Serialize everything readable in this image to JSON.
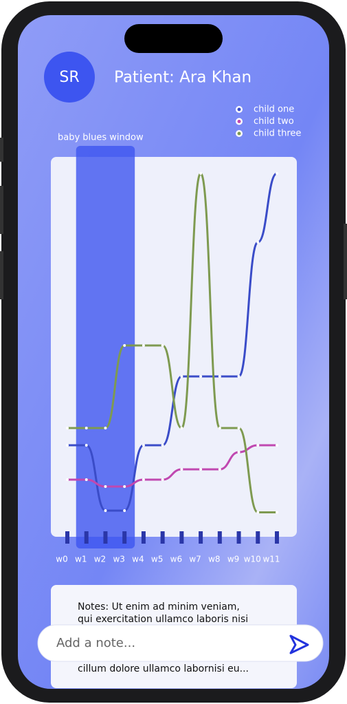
{
  "header": {
    "avatar": "SR",
    "patient": "Patient: Ara Khan"
  },
  "chart_data": {
    "type": "line",
    "annotation": "baby blues window",
    "categories": [
      "w0",
      "w1",
      "w2",
      "w3",
      "w4",
      "w5",
      "w6",
      "w7",
      "w8",
      "w9",
      "w10",
      "w11"
    ],
    "ylim": [
      0,
      10
    ],
    "series": [
      {
        "name": "child one",
        "color": "#3a4cc8",
        "values": [
          2.1,
          2.1,
          0.2,
          0.2,
          2.1,
          2.1,
          4.1,
          4.1,
          4.1,
          4.1,
          8,
          10
        ]
      },
      {
        "name": "child two",
        "color": "#c048b0",
        "values": [
          1.1,
          1.1,
          0.9,
          0.9,
          1.1,
          1.1,
          1.4,
          1.4,
          1.4,
          1.9,
          2.1,
          2.1
        ]
      },
      {
        "name": "child three",
        "color": "#7e9a50",
        "values": [
          2.6,
          2.6,
          2.6,
          5,
          5,
          5,
          2.6,
          10,
          2.6,
          2.6,
          0.15,
          0.15
        ]
      }
    ]
  },
  "notes": {
    "lines": [
      "Notes: Ut enim ad minim veniam,",
      "qui exercitation ullamco laboris nisi",
      "cillum dolore ullamco labornisi eu..."
    ]
  },
  "input": {
    "placeholder": "Add a note..."
  }
}
